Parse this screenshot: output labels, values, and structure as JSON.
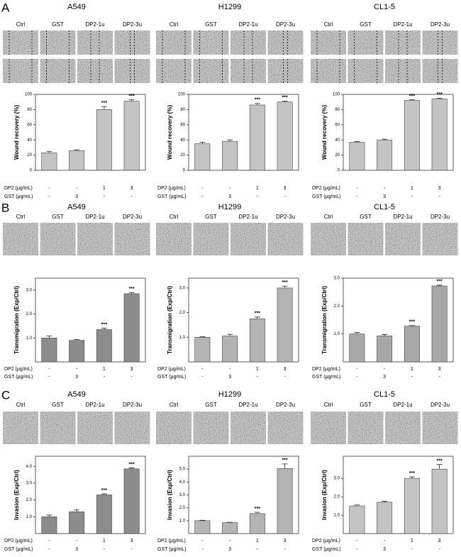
{
  "panel_labels": [
    "A",
    "B",
    "C"
  ],
  "chart_data": [
    {
      "type": "bar",
      "title": "A549",
      "image_labels": [
        "Ctrl",
        "GST",
        "DP2-1u",
        "DP2-3u"
      ],
      "ylabel": "Wound recovery (%)",
      "color": "#c4c4c4",
      "values": [
        23,
        26,
        80,
        91
      ],
      "errors": [
        2,
        1,
        4,
        2
      ],
      "annotations": [
        null,
        null,
        "***",
        "***"
      ],
      "ylim": [
        0,
        100
      ],
      "yticks": [
        0,
        20,
        40,
        60,
        80,
        100
      ],
      "conditions": [
        {
          "label": "DP2 (μg/mL)",
          "values": [
            "-",
            "-",
            "1",
            "3"
          ]
        },
        {
          "label": "GST (μg/mL)",
          "values": [
            "-",
            "3",
            "-",
            "-"
          ]
        }
      ]
    },
    {
      "type": "bar",
      "title": "H1299",
      "image_labels": [
        "Ctrl",
        "GST",
        "DP2-1u",
        "DP2-3u"
      ],
      "ylabel": "Wound recovery (%)",
      "color": "#c4c4c4",
      "values": [
        35,
        38,
        86,
        90
      ],
      "errors": [
        2,
        2,
        2,
        1
      ],
      "annotations": [
        null,
        null,
        "***",
        "***"
      ],
      "ylim": [
        0,
        100
      ],
      "yticks": [
        0,
        20,
        40,
        60,
        80,
        100
      ],
      "conditions": [
        {
          "label": "DP2 (μg/mL)",
          "values": [
            "-",
            "-",
            "1",
            "3"
          ]
        },
        {
          "label": "GST (μg/mL)",
          "values": [
            "-",
            "3",
            "-",
            "-"
          ]
        }
      ]
    },
    {
      "type": "bar",
      "title": "CL1-5",
      "image_labels": [
        "Ctrl",
        "GST",
        "DP2-1u",
        "DP2-3u"
      ],
      "ylabel": "Wound recovery (%)",
      "color": "#c4c4c4",
      "values": [
        37,
        40,
        92,
        94
      ],
      "errors": [
        1,
        1,
        1,
        1
      ],
      "annotations": [
        null,
        null,
        "***",
        "***"
      ],
      "ylim": [
        0,
        100
      ],
      "yticks": [
        0,
        20,
        40,
        60,
        80,
        100
      ],
      "conditions": [
        {
          "label": "DP2 (μg/mL)",
          "values": [
            "-",
            "-",
            "1",
            "3"
          ]
        },
        {
          "label": "GST (μg/mL)",
          "values": [
            "-",
            "3",
            "-",
            "-"
          ]
        }
      ]
    },
    {
      "type": "bar",
      "title": "A549",
      "image_labels": [
        "Ctrl",
        "GST",
        "DP2-1u",
        "DP2-3u"
      ],
      "ylabel": "Transmigration (Exp/Ctrl)",
      "color": "#8c8c8c",
      "values": [
        1.0,
        0.9,
        1.35,
        2.85
      ],
      "errors": [
        0.08,
        0.03,
        0.06,
        0.05
      ],
      "annotations": [
        null,
        null,
        "***",
        "***"
      ],
      "ylim": [
        0,
        3.5
      ],
      "yticks": [
        {
          "value": 1,
          "label": "1.0"
        },
        {
          "value": 2,
          "label": "2.0"
        },
        {
          "value": 3,
          "label": "3.0"
        }
      ],
      "conditions": [
        {
          "label": "DP2 (μg/mL)",
          "values": [
            "-",
            "-",
            "1",
            "3"
          ]
        },
        {
          "label": "GST (μg/mL)",
          "values": [
            "-",
            "3",
            "-",
            "-"
          ]
        }
      ]
    },
    {
      "type": "bar",
      "title": "H1299",
      "image_labels": [
        "Ctrl",
        "GST",
        "DP2-1u",
        "DP2-3u"
      ],
      "ylabel": "Transmigration (Exp/Ctrl)",
      "color": "#b4b4b4",
      "values": [
        1.0,
        1.05,
        1.75,
        3.0
      ],
      "errors": [
        0.02,
        0.07,
        0.07,
        0.08
      ],
      "annotations": [
        null,
        null,
        "***",
        "***"
      ],
      "ylim": [
        0,
        3.4
      ],
      "yticks": [
        {
          "value": 1,
          "label": "1.0"
        },
        {
          "value": 2,
          "label": "2.0"
        },
        {
          "value": 3,
          "label": "3.0"
        }
      ],
      "conditions": [
        {
          "label": "DP2 (μg/mL)",
          "values": [
            "-",
            "-",
            "1",
            "3"
          ]
        },
        {
          "label": "GST (μg/mL)",
          "values": [
            "-",
            "3",
            "-",
            "-"
          ]
        }
      ]
    },
    {
      "type": "bar",
      "title": "CL1-5",
      "image_labels": [
        "Ctrl",
        "GST",
        "DP2-1u",
        "DP2-3u"
      ],
      "ylabel": "Transmigration (Exp/Ctrl)",
      "color": "#a8a8a8",
      "values": [
        1.0,
        0.93,
        1.28,
        2.72
      ],
      "errors": [
        0.05,
        0.05,
        0.02,
        0.03
      ],
      "annotations": [
        null,
        null,
        "***",
        "***"
      ],
      "ylim": [
        0,
        3.0
      ],
      "yticks": [
        {
          "value": 1,
          "label": "1.0"
        },
        {
          "value": 2,
          "label": "2.0"
        },
        {
          "value": 3,
          "label": "3.0"
        }
      ],
      "conditions": [
        {
          "label": "DP2 (μg/mL)",
          "values": [
            "-",
            "-",
            "1",
            "3"
          ]
        },
        {
          "label": "GST (μg/mL)",
          "values": [
            "-",
            "3",
            "-",
            "-"
          ]
        }
      ]
    },
    {
      "type": "bar",
      "title": "A549",
      "image_labels": [
        "Ctrl",
        "GST",
        "DP2-1u",
        "DP2-3u"
      ],
      "ylabel": "Invasion (Exp/Ctrl)",
      "color": "#8c8c8c",
      "values": [
        1.0,
        1.3,
        2.3,
        3.85
      ],
      "errors": [
        0.1,
        0.12,
        0.06,
        0.05
      ],
      "annotations": [
        null,
        null,
        "***",
        "***"
      ],
      "ylim": [
        0,
        4.6
      ],
      "yticks": [
        {
          "value": 1,
          "label": "1.0"
        },
        {
          "value": 2,
          "label": "2.0"
        },
        {
          "value": 3,
          "label": "3.0"
        },
        {
          "value": 4,
          "label": "4.0"
        }
      ],
      "conditions": [
        {
          "label": "DP2 (μg/mL)",
          "values": [
            "-",
            "-",
            "1",
            "3"
          ]
        },
        {
          "label": "GST (μg/mL)",
          "values": [
            "-",
            "3",
            "-",
            "-"
          ]
        }
      ]
    },
    {
      "type": "bar",
      "title": "H1299",
      "image_labels": [
        "Ctrl",
        "GST",
        "DP2-1u",
        "DP2-3u"
      ],
      "ylabel": "Invasion (Exp/Ctrl)",
      "color": "#b4b4b4",
      "values": [
        1.0,
        0.85,
        1.55,
        5.05
      ],
      "errors": [
        0.03,
        0.03,
        0.1,
        0.35
      ],
      "annotations": [
        null,
        null,
        "***",
        "***"
      ],
      "ylim": [
        0,
        6
      ],
      "yticks": [
        {
          "value": 1,
          "label": "1.0"
        },
        {
          "value": 2,
          "label": "2.0"
        },
        {
          "value": 3,
          "label": "3.0"
        },
        {
          "value": 4,
          "label": "4.0"
        },
        {
          "value": 5,
          "label": "5.0"
        }
      ],
      "conditions": [
        {
          "label": "DP2 (μg/mL)",
          "values": [
            "-",
            "-",
            "1",
            "3"
          ]
        },
        {
          "label": "GST (μg/mL)",
          "values": [
            "-",
            "3",
            "-",
            "-"
          ]
        }
      ]
    },
    {
      "type": "bar",
      "title": "CL1-5",
      "image_labels": [
        "Ctrl",
        "GST",
        "DP2-1u",
        "DP2-3u"
      ],
      "ylabel": "Invasion (Exp/Ctrl)",
      "color": "#c4c4c4",
      "values": [
        1.5,
        1.7,
        3.0,
        3.5
      ],
      "errors": [
        0.05,
        0.05,
        0.08,
        0.25
      ],
      "annotations": [
        null,
        null,
        "***",
        "***"
      ],
      "ylim": [
        0,
        4.2
      ],
      "yticks": [
        {
          "value": 1,
          "label": "1.0"
        },
        {
          "value": 2,
          "label": "2.0"
        },
        {
          "value": 3,
          "label": "3.0"
        }
      ],
      "conditions": [
        {
          "label": "DP2 (μg/mL)",
          "values": [
            "-",
            "-",
            "1",
            "3"
          ]
        },
        {
          "label": "GST (μg/mL)",
          "values": [
            "-",
            "3",
            "-",
            "-"
          ]
        }
      ]
    }
  ]
}
